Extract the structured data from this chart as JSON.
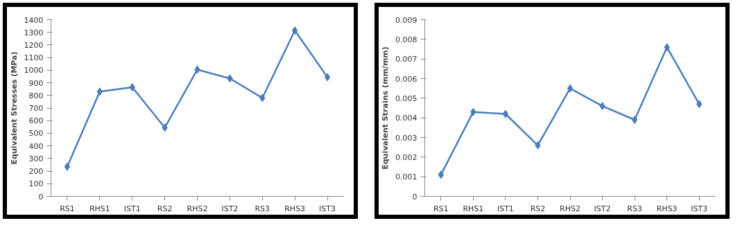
{
  "chart_data": [
    {
      "type": "line",
      "ylabel": "Equivalent Stresses (MPa)",
      "categories": [
        "RS1",
        "RHS1",
        "IST1",
        "RS2",
        "RHS2",
        "IST2",
        "RS3",
        "RHS3",
        "IST3"
      ],
      "series": [
        {
          "color": "#4a7ebb",
          "values": [
            235,
            830,
            865,
            545,
            1005,
            935,
            780,
            1315,
            945
          ]
        }
      ],
      "ylim": [
        0,
        1400
      ],
      "yticks": [
        0,
        100,
        200,
        300,
        400,
        500,
        600,
        700,
        800,
        900,
        1000,
        1100,
        1200,
        1300,
        1400
      ],
      "grid": false,
      "marker": "diamond",
      "line_style": "solid"
    },
    {
      "type": "line",
      "ylabel": "Equivalent Strains (mm/mm)",
      "categories": [
        "RS1",
        "RHS1",
        "IST1",
        "RS2",
        "RHS2",
        "IST2",
        "RS3",
        "RHS3",
        "IST3"
      ],
      "series": [
        {
          "color": "#4a7ebb",
          "values": [
            0.0011,
            0.0043,
            0.0042,
            0.0026,
            0.0055,
            0.0046,
            0.0039,
            0.0076,
            0.0047
          ]
        }
      ],
      "ylim": [
        0,
        0.009
      ],
      "yticks": [
        0,
        0.001,
        0.002,
        0.003,
        0.004,
        0.005,
        0.006,
        0.007,
        0.008,
        0.009
      ],
      "grid": false,
      "marker": "diamond",
      "line_style": "solid"
    }
  ]
}
